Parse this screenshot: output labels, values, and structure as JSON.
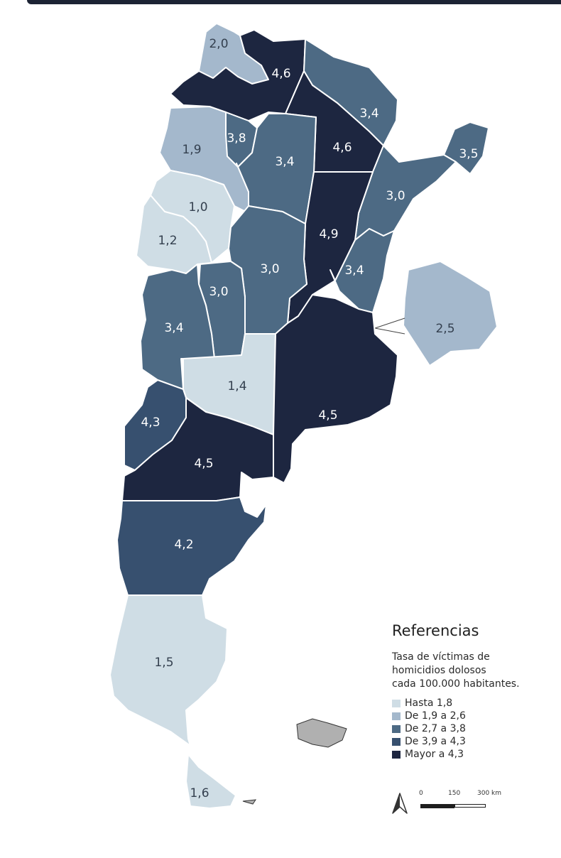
{
  "legend": {
    "title": "Referencias",
    "subtitle_lines": [
      "Tasa de víctimas de",
      "homicidios dolosos",
      "cada 100.000 habitantes."
    ],
    "classes": [
      {
        "label": "Hasta 1,8",
        "color": "#cfdde5"
      },
      {
        "label": "De 1,9 a 2,6",
        "color": "#a4b8cc"
      },
      {
        "label": "De 2,7 a 3,8",
        "color": "#4d6a84"
      },
      {
        "label": "De 3,9 a 4,3",
        "color": "#37506f"
      },
      {
        "label": "Mayor a 4,3",
        "color": "#1d2640"
      }
    ]
  },
  "scale_bar": {
    "labels": [
      "0",
      "150",
      "300 km"
    ]
  },
  "provinces": [
    {
      "name": "Jujuy",
      "value": "2,0",
      "class": 1
    },
    {
      "name": "Salta",
      "value": "4,6",
      "class": 4
    },
    {
      "name": "Formosa",
      "value": "3,4",
      "class": 2
    },
    {
      "name": "Chaco",
      "value": "4,6",
      "class": 4
    },
    {
      "name": "Misiones",
      "value": "3,5",
      "class": 2
    },
    {
      "name": "Catamarca",
      "value": "1,9",
      "class": 1
    },
    {
      "name": "Tucumán",
      "value": "3,8",
      "class": 2
    },
    {
      "name": "Santiago del Estero",
      "value": "3,4",
      "class": 2
    },
    {
      "name": "Corrientes",
      "value": "3,0",
      "class": 2
    },
    {
      "name": "La Rioja",
      "value": "1,0",
      "class": 0
    },
    {
      "name": "San Juan",
      "value": "1,2",
      "class": 0
    },
    {
      "name": "Santa Fe",
      "value": "4,9",
      "class": 4
    },
    {
      "name": "Córdoba",
      "value": "3,0",
      "class": 2
    },
    {
      "name": "Entre Ríos",
      "value": "3,4",
      "class": 2
    },
    {
      "name": "San Luis",
      "value": "3,0",
      "class": 2
    },
    {
      "name": "Mendoza",
      "value": "3,4",
      "class": 2
    },
    {
      "name": "Ciudad de Buenos Aires",
      "value": "2,5",
      "class": 1
    },
    {
      "name": "La Pampa",
      "value": "1,4",
      "class": 0
    },
    {
      "name": "Buenos Aires",
      "value": "4,5",
      "class": 4
    },
    {
      "name": "Neuquén",
      "value": "4,3",
      "class": 3
    },
    {
      "name": "Río Negro",
      "value": "4,5",
      "class": 4
    },
    {
      "name": "Chubut",
      "value": "4,2",
      "class": 3
    },
    {
      "name": "Santa Cruz",
      "value": "1,5",
      "class": 0
    },
    {
      "name": "Tierra del Fuego",
      "value": "1,6",
      "class": 0
    }
  ]
}
